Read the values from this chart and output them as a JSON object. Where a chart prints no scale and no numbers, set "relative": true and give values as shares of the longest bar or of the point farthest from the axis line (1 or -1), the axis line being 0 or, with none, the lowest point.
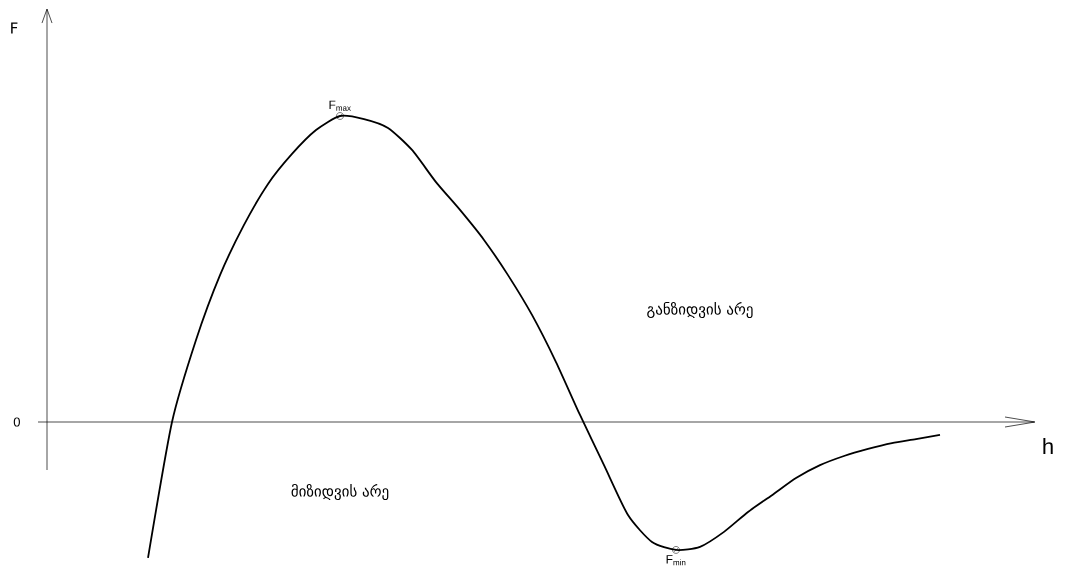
{
  "chart_data": {
    "type": "line",
    "relative": true,
    "xlabel": "h",
    "color": "#000000",
    "marker": "none",
    "line_style": "solid",
    "categories": [
      null,
      null,
      null,
      null,
      null,
      null,
      null,
      null,
      null,
      null,
      null,
      null,
      null,
      null,
      null,
      null,
      null,
      null,
      null,
      null,
      null,
      null,
      null,
      null,
      null,
      null,
      null,
      null,
      null,
      null,
      null,
      null,
      null,
      null
    ],
    "values": [
      -0.444,
      0,
      0.268,
      0.48,
      0.644,
      0.778,
      0.876,
      0.954,
      1.0,
      0.99,
      0.961,
      0.889,
      0.784,
      0.693,
      0.595,
      0.48,
      0.35,
      0.196,
      0.023,
      -0.141,
      -0.304,
      -0.392,
      -0.418,
      -0.408,
      -0.359,
      -0.294,
      -0.239,
      -0.183,
      -0.141,
      -0.111,
      -0.088,
      -0.069,
      -0.056,
      -0.042
    ],
    "ref_lines": [
      {
        "axis": "y",
        "value": 0,
        "label": "0"
      }
    ],
    "annotations": [
      "F",
      {
        "text": "F$_{max}$",
        "y": 1.0
      },
      {
        "text": "F$_{min}$",
        "y": -0.418
      },
      "განზიდვის არე",
      "მიზიდვის არე"
    ]
  }
}
